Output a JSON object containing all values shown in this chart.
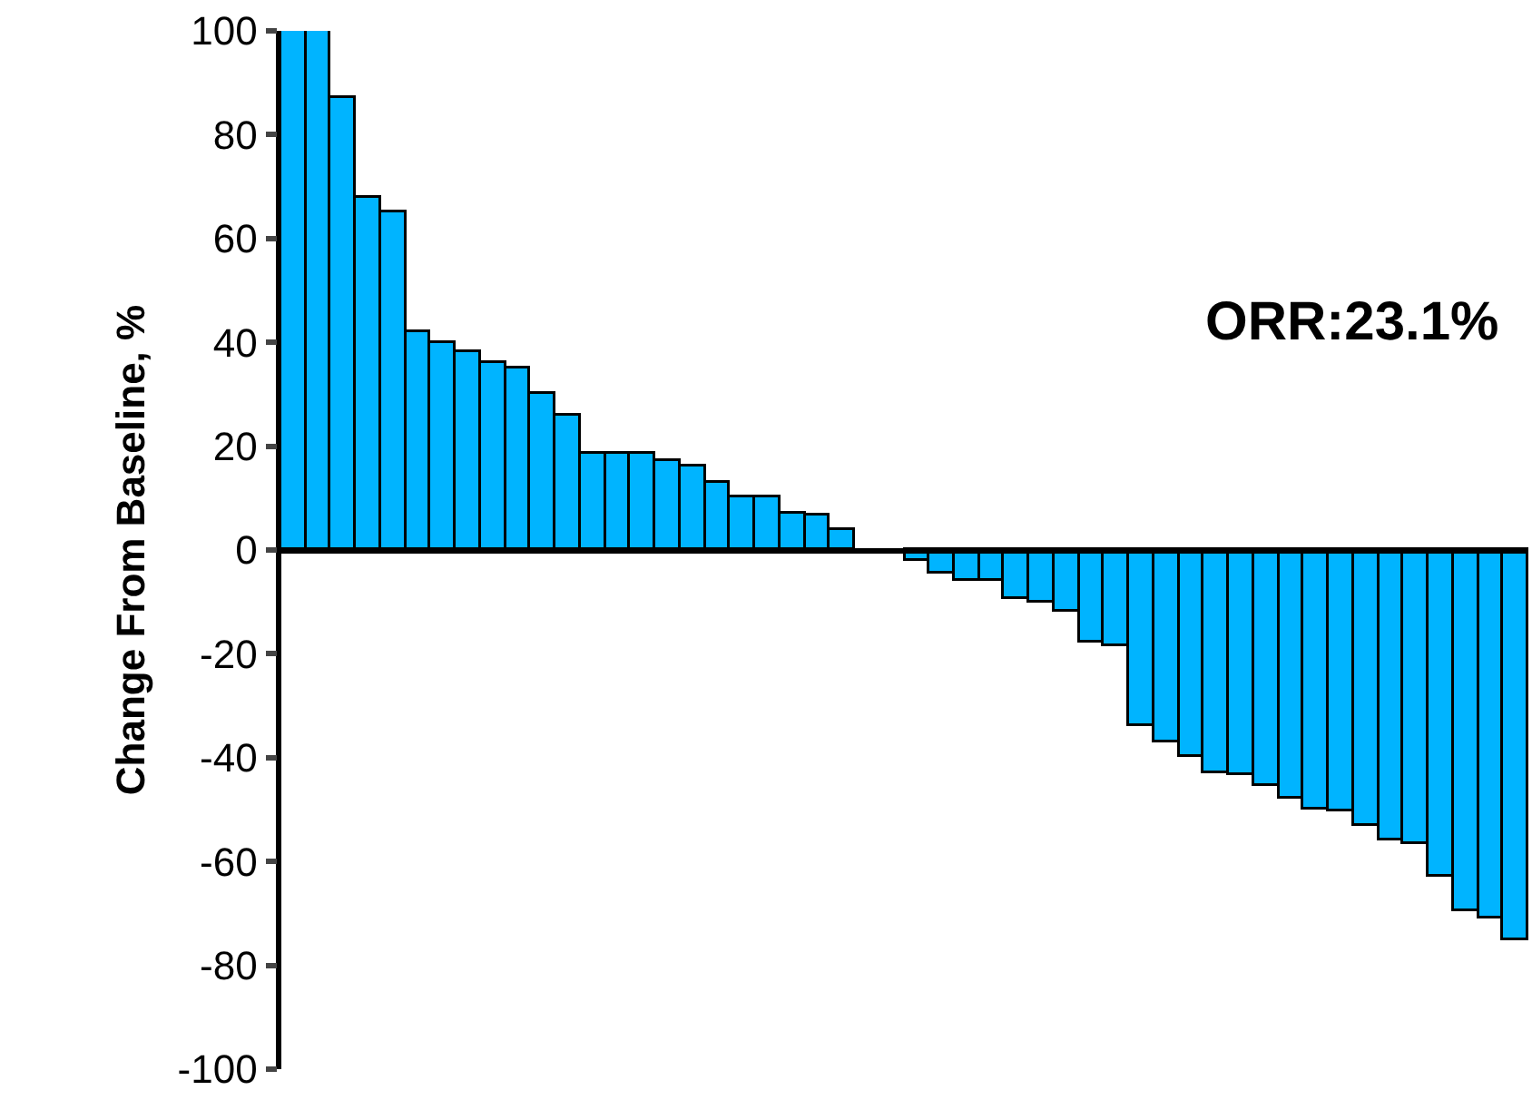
{
  "chart_data": {
    "type": "bar",
    "ylabel": "Change From Baseline, %",
    "categories": [
      null,
      null,
      null,
      null,
      null,
      null,
      null,
      null,
      null,
      null,
      null,
      null,
      null,
      null,
      null,
      null,
      null,
      null,
      null,
      null,
      null,
      null,
      null,
      null,
      null,
      null,
      null,
      null,
      null,
      null,
      null,
      null,
      null,
      null,
      null,
      null,
      null,
      null,
      null,
      null,
      null,
      null,
      null,
      null,
      null,
      null,
      null,
      null,
      null,
      null
    ],
    "values": [
      100,
      100,
      87,
      68,
      65,
      42,
      40,
      38,
      36,
      35,
      30,
      26,
      18.5,
      18.5,
      18.5,
      17,
      16,
      13,
      10,
      10,
      7,
      6.5,
      4,
      null,
      null,
      -2,
      -4.5,
      -6,
      -6,
      -9.5,
      -10,
      -12,
      -18,
      -18.5,
      -34,
      -37,
      -40,
      -43,
      -43.5,
      -45.5,
      -48,
      -50,
      -50.5,
      -53,
      -56,
      -56.5,
      -63,
      -69.5,
      -71,
      -75
    ],
    "color": "#00b4ff",
    "ylim": [
      -100,
      100
    ],
    "yticks": [
      -100,
      -80,
      -60,
      -40,
      -20,
      0,
      20,
      40,
      60,
      80,
      100
    ],
    "annotations": [
      "ORR:23.1%"
    ]
  }
}
